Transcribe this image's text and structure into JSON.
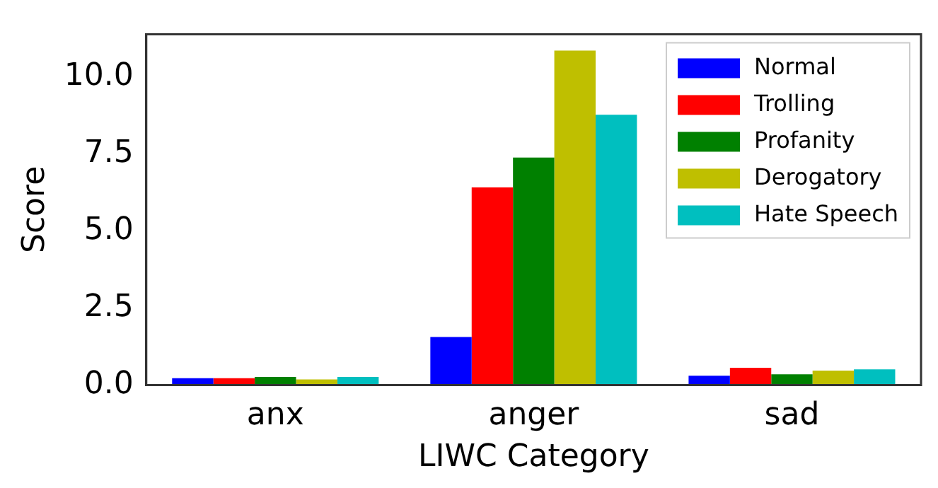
{
  "chart_data": {
    "type": "bar",
    "xlabel": "LIWC Category",
    "ylabel": "Score",
    "categories": [
      "anx",
      "anger",
      "sad"
    ],
    "series": [
      {
        "name": "Normal",
        "color": "#0000ff",
        "values": [
          0.22,
          1.56,
          0.3
        ]
      },
      {
        "name": "Trolling",
        "color": "#ff0000",
        "values": [
          0.22,
          6.41,
          0.56
        ]
      },
      {
        "name": "Profanity",
        "color": "#008000",
        "values": [
          0.26,
          7.38,
          0.35
        ]
      },
      {
        "name": "Derogatory",
        "color": "#bfbf00",
        "values": [
          0.18,
          10.85,
          0.47
        ]
      },
      {
        "name": "Hate Speech",
        "color": "#00bfbf",
        "values": [
          0.26,
          8.77,
          0.51
        ]
      }
    ],
    "ylim": [
      0,
      11.38
    ],
    "yticks": [
      {
        "value": 0,
        "label": "0.0"
      },
      {
        "value": 2.5,
        "label": "2.5"
      },
      {
        "value": 5,
        "label": "5.0"
      },
      {
        "value": 7.5,
        "label": "7.5"
      },
      {
        "value": 10,
        "label": "10.0"
      }
    ],
    "grid": false,
    "legend": "top right"
  }
}
